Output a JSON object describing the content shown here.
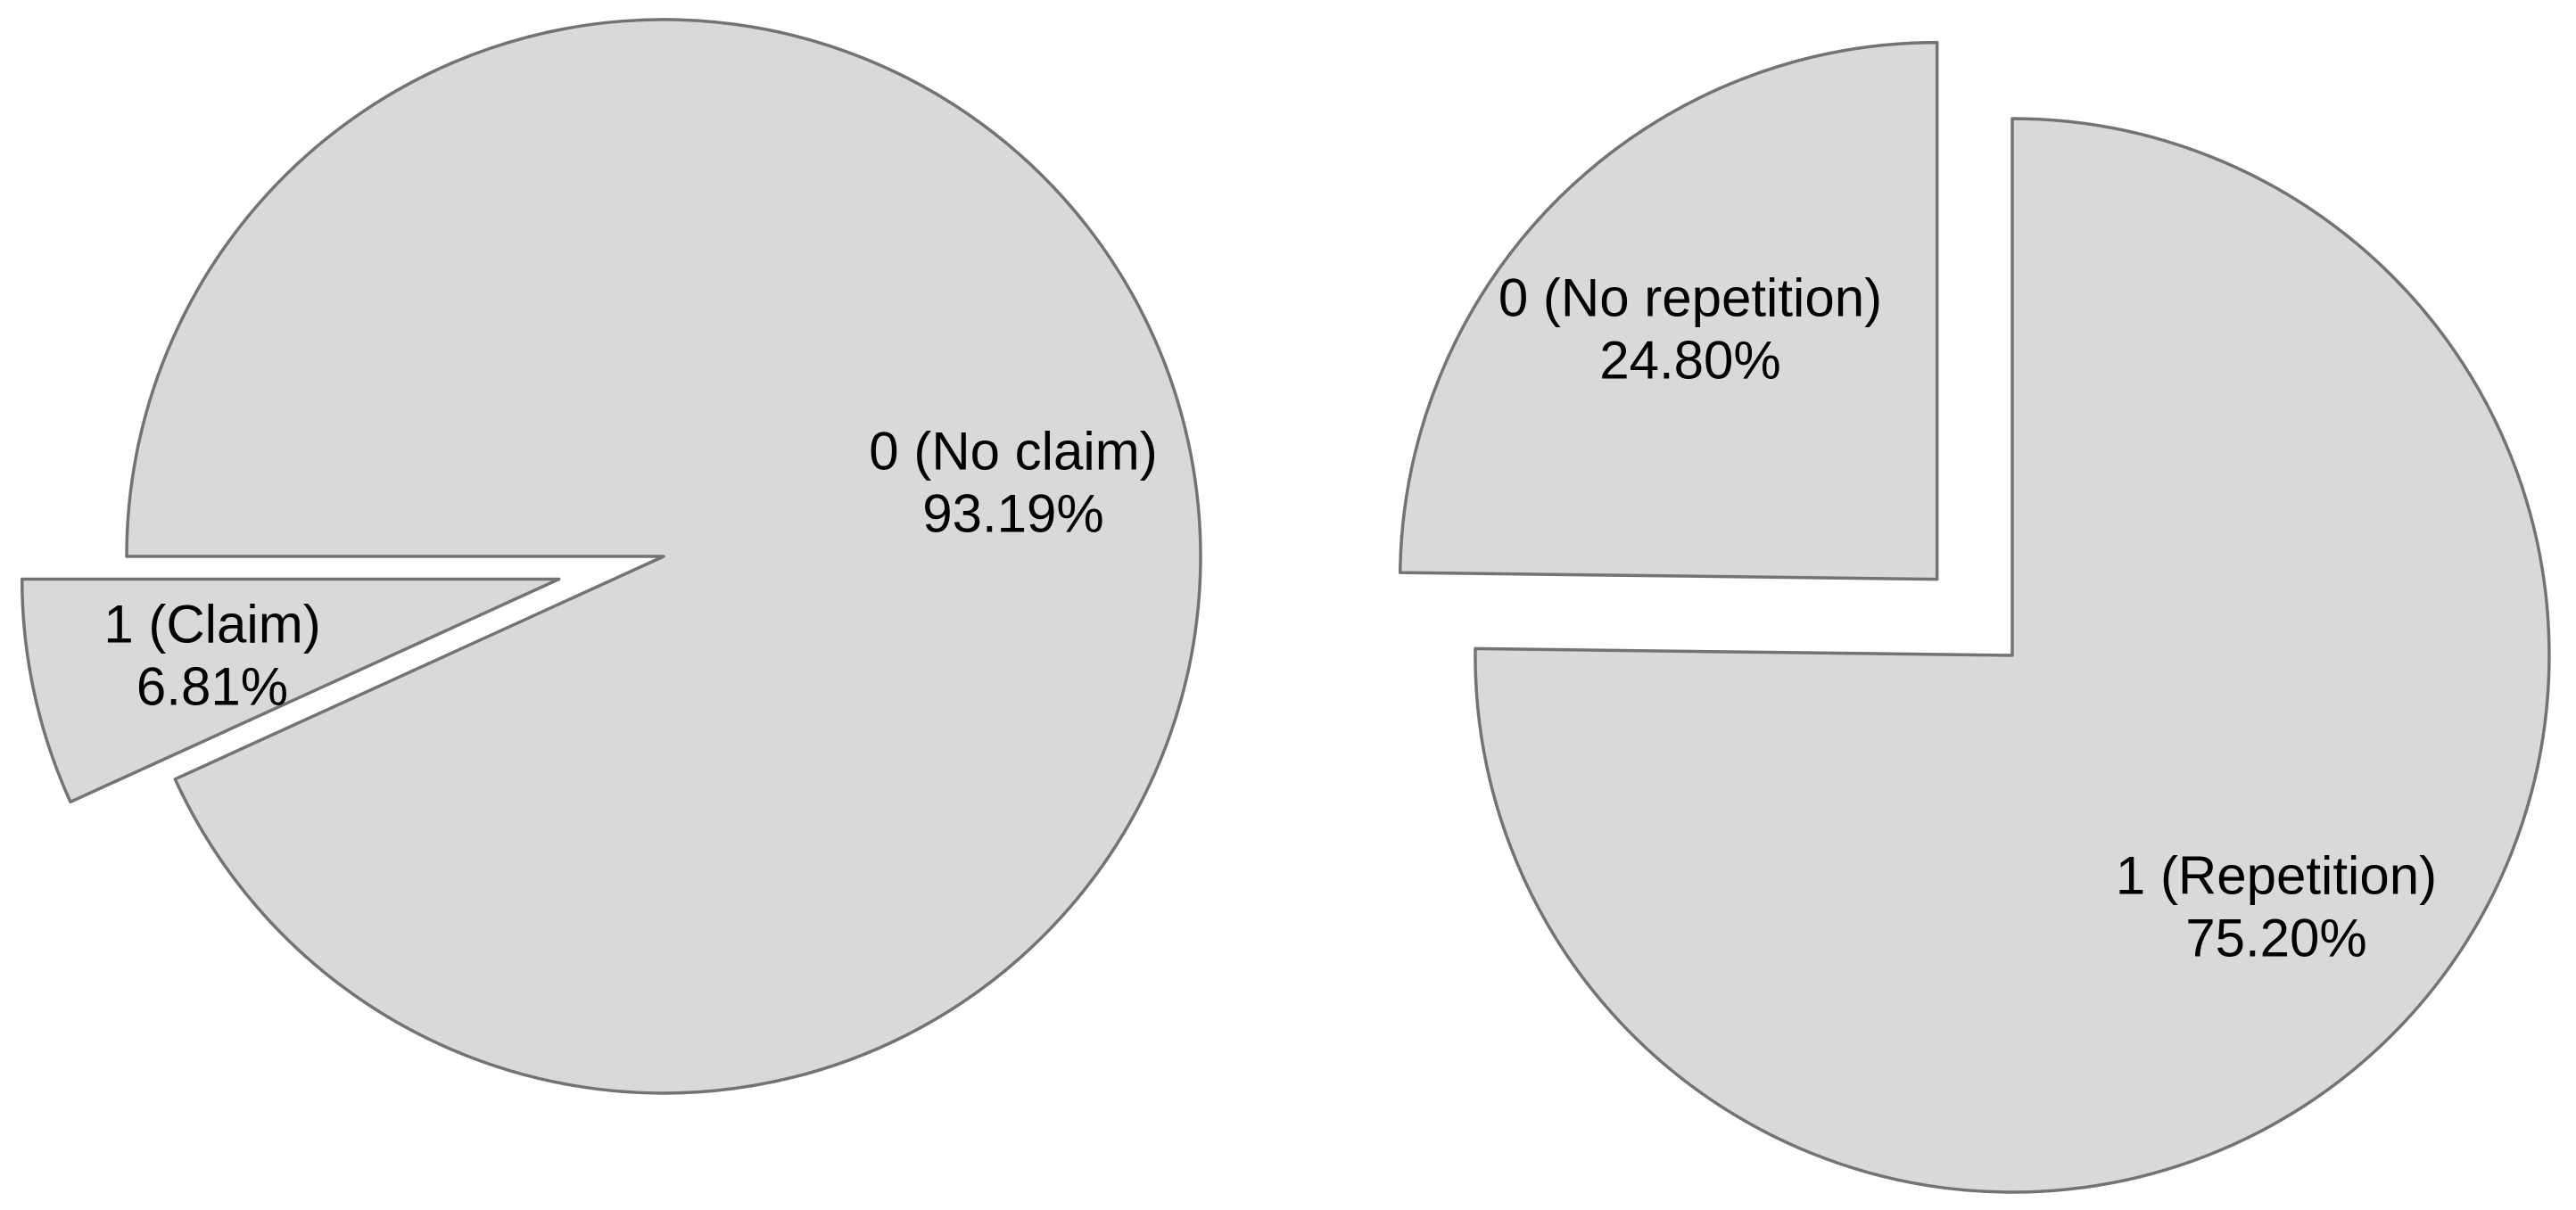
{
  "figure": {
    "background_color": "#ffffff",
    "slice_fill_color": "#d9d9d9",
    "slice_stroke_color": "#737373"
  },
  "chart_data": [
    {
      "type": "pie",
      "title": "",
      "legend_position": "none",
      "grid": false,
      "slices": [
        {
          "label": "0 (No claim)",
          "value_pct": 93.19,
          "pct_label": "93.19%",
          "exploded": false
        },
        {
          "label": "1 (Claim)",
          "value_pct": 6.81,
          "pct_label": "6.81%",
          "exploded": true
        }
      ]
    },
    {
      "type": "pie",
      "title": "",
      "legend_position": "none",
      "grid": false,
      "slices": [
        {
          "label": "0 (No repetition)",
          "value_pct": 24.8,
          "pct_label": "24.80%",
          "exploded": true
        },
        {
          "label": "1 (Repetition)",
          "value_pct": 75.2,
          "pct_label": "75.20%",
          "exploded": false
        }
      ]
    }
  ]
}
